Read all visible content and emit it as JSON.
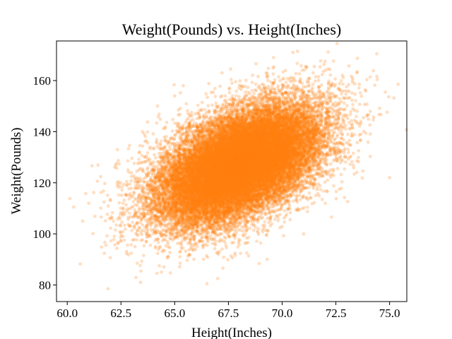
{
  "chart_data": {
    "type": "scatter",
    "title": "Weight(Pounds) vs. Height(Inches)",
    "xlabel": "Height(Inches)",
    "ylabel": "Weight(Pounds)",
    "xlim": [
      59.5,
      75.8
    ],
    "ylim": [
      73.5,
      175.5
    ],
    "xticks": [
      "60.0",
      "62.5",
      "65.0",
      "67.5",
      "70.0",
      "72.5",
      "75.0"
    ],
    "yticks": [
      "80",
      "100",
      "120",
      "140",
      "160"
    ],
    "grid": false,
    "legend": "none",
    "color": "#ff7f0e",
    "marker_alpha": 0.25,
    "series": [
      {
        "n_points": 25000,
        "x_mean": 68.0,
        "x_std": 1.9,
        "y_mean": 127.1,
        "y_std": 11.7,
        "correlation": 0.5,
        "values": [
          [
            60.3,
            110.5
          ],
          [
            60.6,
            88.2
          ],
          [
            61.0,
            112.0
          ],
          [
            61.4,
            120.6
          ],
          [
            61.8,
            95.5
          ],
          [
            61.9,
            78.5
          ],
          [
            62.0,
            90.7
          ],
          [
            62.1,
            108.3
          ],
          [
            62.3,
            125.7
          ],
          [
            62.6,
            99.0
          ],
          [
            62.9,
            134.6
          ],
          [
            63.2,
            82.9
          ],
          [
            63.5,
            140.0
          ],
          [
            64.2,
            150.0
          ],
          [
            64.8,
            84.7
          ],
          [
            65.0,
            154.0
          ],
          [
            65.4,
            158.0
          ],
          [
            66.5,
            80.5
          ],
          [
            67.0,
            82.5
          ],
          [
            67.2,
            163.0
          ],
          [
            67.6,
            164.5
          ],
          [
            69.3,
            90.0
          ],
          [
            69.6,
            169.0
          ],
          [
            70.5,
            171.0
          ],
          [
            71.0,
            100.0
          ],
          [
            71.5,
            165.5
          ],
          [
            72.3,
            106.6
          ],
          [
            72.9,
            114.2
          ],
          [
            73.5,
            168.7
          ],
          [
            74.1,
            130.3
          ],
          [
            74.4,
            170.5
          ],
          [
            74.6,
            146.7
          ],
          [
            74.8,
            155.5
          ],
          [
            75.0,
            122.0
          ],
          [
            75.2,
            153.2
          ]
        ]
      }
    ]
  }
}
